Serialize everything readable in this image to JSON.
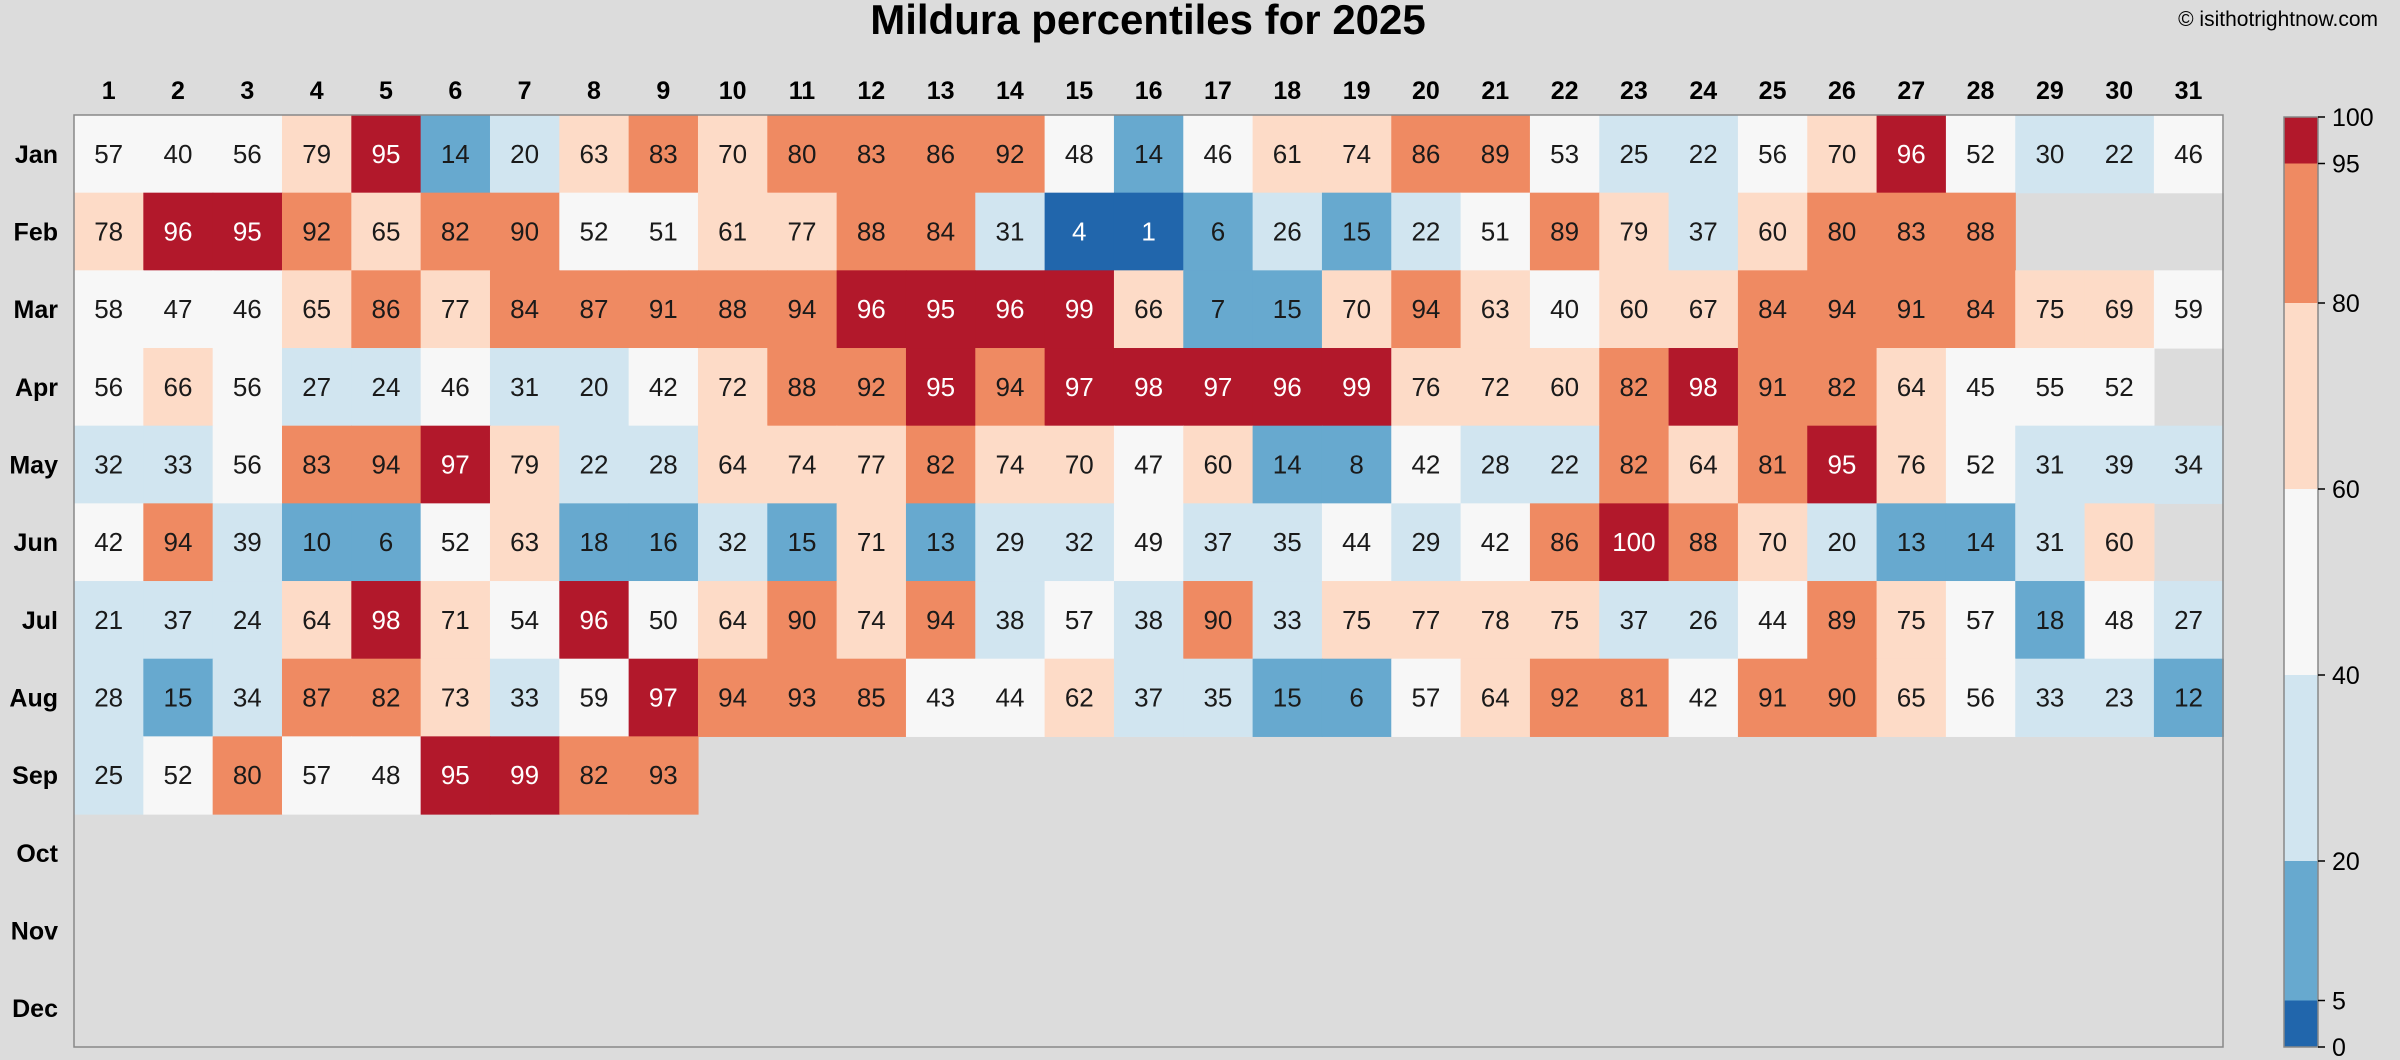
{
  "credit": "© isithotrightnow.com",
  "chart_data": {
    "type": "heatmap",
    "title": "Mildura percentiles for 2025",
    "x": [
      "1",
      "2",
      "3",
      "4",
      "5",
      "6",
      "7",
      "8",
      "9",
      "10",
      "11",
      "12",
      "13",
      "14",
      "15",
      "16",
      "17",
      "18",
      "19",
      "20",
      "21",
      "22",
      "23",
      "24",
      "25",
      "26",
      "27",
      "28",
      "29",
      "30",
      "31"
    ],
    "y": [
      "Jan",
      "Feb",
      "Mar",
      "Apr",
      "May",
      "Jun",
      "Jul",
      "Aug",
      "Sep",
      "Oct",
      "Nov",
      "Dec"
    ],
    "values": [
      [
        57,
        40,
        56,
        79,
        95,
        14,
        20,
        63,
        83,
        70,
        80,
        83,
        86,
        92,
        48,
        14,
        46,
        61,
        74,
        86,
        89,
        53,
        25,
        22,
        56,
        70,
        96,
        52,
        30,
        22,
        46
      ],
      [
        78,
        96,
        95,
        92,
        65,
        82,
        90,
        52,
        51,
        61,
        77,
        88,
        84,
        31,
        4,
        1,
        6,
        26,
        15,
        22,
        51,
        89,
        79,
        37,
        60,
        80,
        83,
        88,
        null,
        null,
        null
      ],
      [
        58,
        47,
        46,
        65,
        86,
        77,
        84,
        87,
        91,
        88,
        94,
        96,
        95,
        96,
        99,
        66,
        7,
        15,
        70,
        94,
        63,
        40,
        60,
        67,
        84,
        94,
        91,
        84,
        75,
        69,
        59
      ],
      [
        56,
        66,
        56,
        27,
        24,
        46,
        31,
        20,
        42,
        72,
        88,
        92,
        95,
        94,
        97,
        98,
        97,
        96,
        99,
        76,
        72,
        60,
        82,
        98,
        91,
        82,
        64,
        45,
        55,
        52,
        null
      ],
      [
        32,
        33,
        56,
        83,
        94,
        97,
        79,
        22,
        28,
        64,
        74,
        77,
        82,
        74,
        70,
        47,
        60,
        14,
        8,
        42,
        28,
        22,
        82,
        64,
        81,
        95,
        76,
        52,
        31,
        39,
        34
      ],
      [
        42,
        94,
        39,
        10,
        6,
        52,
        63,
        18,
        16,
        32,
        15,
        71,
        13,
        29,
        32,
        49,
        37,
        35,
        44,
        29,
        42,
        86,
        100,
        88,
        70,
        20,
        13,
        14,
        31,
        60,
        null
      ],
      [
        21,
        37,
        24,
        64,
        98,
        71,
        54,
        96,
        50,
        64,
        90,
        74,
        94,
        38,
        57,
        38,
        90,
        33,
        75,
        77,
        78,
        75,
        37,
        26,
        44,
        89,
        75,
        57,
        18,
        48,
        27
      ],
      [
        28,
        15,
        34,
        87,
        82,
        73,
        33,
        59,
        97,
        94,
        93,
        85,
        43,
        44,
        62,
        37,
        35,
        15,
        6,
        57,
        64,
        92,
        81,
        42,
        91,
        90,
        65,
        56,
        33,
        23,
        12
      ],
      [
        25,
        52,
        80,
        57,
        48,
        95,
        99,
        82,
        93,
        null,
        null,
        null,
        null,
        null,
        null,
        null,
        null,
        null,
        null,
        null,
        null,
        null,
        null,
        null,
        null,
        null,
        null,
        null,
        null,
        null,
        null
      ],
      [
        null,
        null,
        null,
        null,
        null,
        null,
        null,
        null,
        null,
        null,
        null,
        null,
        null,
        null,
        null,
        null,
        null,
        null,
        null,
        null,
        null,
        null,
        null,
        null,
        null,
        null,
        null,
        null,
        null,
        null,
        null
      ],
      [
        null,
        null,
        null,
        null,
        null,
        null,
        null,
        null,
        null,
        null,
        null,
        null,
        null,
        null,
        null,
        null,
        null,
        null,
        null,
        null,
        null,
        null,
        null,
        null,
        null,
        null,
        null,
        null,
        null,
        null,
        null
      ],
      [
        null,
        null,
        null,
        null,
        null,
        null,
        null,
        null,
        null,
        null,
        null,
        null,
        null,
        null,
        null,
        null,
        null,
        null,
        null,
        null,
        null,
        null,
        null,
        null,
        null,
        null,
        null,
        null,
        null,
        null,
        null
      ]
    ],
    "color_scale": {
      "breaks": [
        0,
        5,
        20,
        40,
        60,
        80,
        95,
        100
      ],
      "colors": [
        "#2166ac",
        "#67a9cf",
        "#d1e5f0",
        "#f7f7f7",
        "#fddbc7",
        "#ef8a62",
        "#b2182b"
      ],
      "ticks": [
        "0",
        "5",
        "20",
        "40",
        "60",
        "80",
        "95",
        "100"
      ],
      "missing_color": "#dcdcdc"
    },
    "grid": false,
    "legend": "right"
  }
}
